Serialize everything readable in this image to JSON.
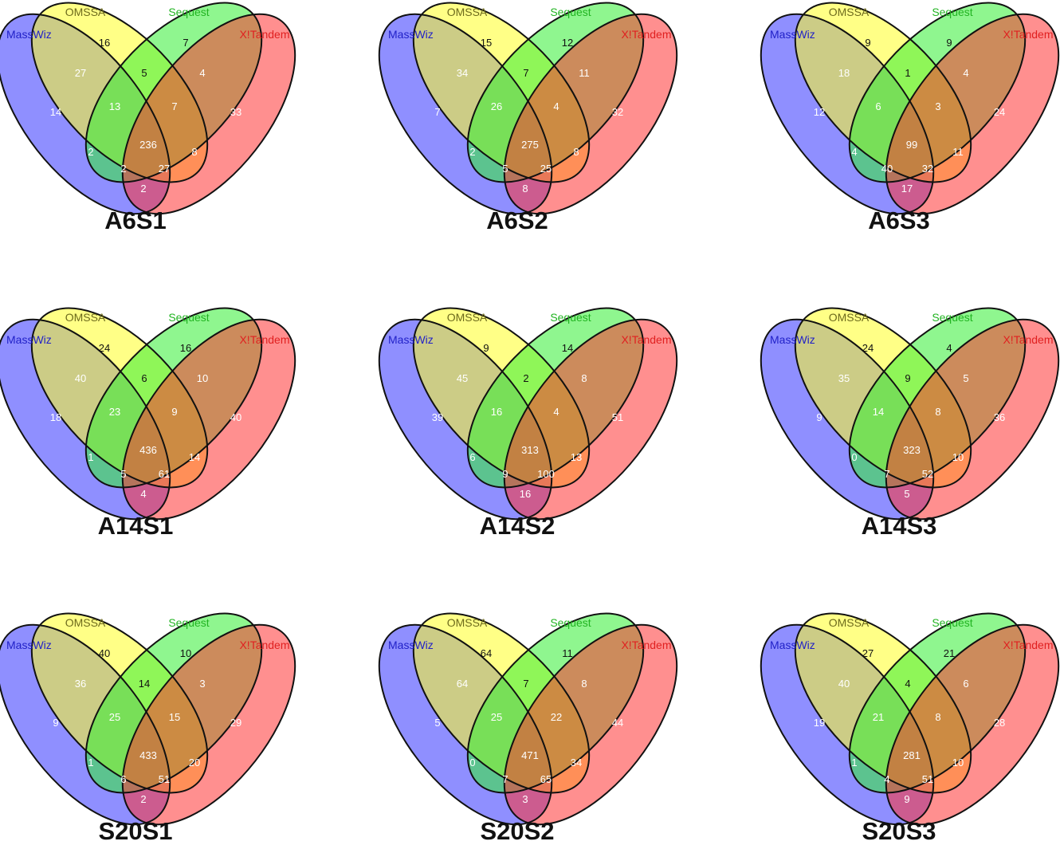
{
  "sets": {
    "masswiz": {
      "label": "MassWiz",
      "color": "#2121c8",
      "fill": "#3333ff"
    },
    "omssa": {
      "label": "OMSSA",
      "color": "#6d6a1c",
      "fill": "#ffff22"
    },
    "sequest": {
      "label": "Sequest",
      "color": "#22b422",
      "fill": "#33ee33"
    },
    "xtandem": {
      "label": "X!Tandem",
      "color": "#e02020",
      "fill": "#ff3333"
    }
  },
  "region_order": [
    "M",
    "O",
    "S",
    "X",
    "MO",
    "OS",
    "SX",
    "MS",
    "OX",
    "MOS",
    "OSX",
    "MOSX",
    "MX",
    "MOX",
    "MSX"
  ],
  "panels": [
    {
      "title": "A6S1",
      "counts": {
        "M": "14",
        "O": "16",
        "S": "7",
        "X": "33",
        "MO": "27",
        "OS": "5",
        "SX": "4",
        "MS": "2",
        "OX": "8",
        "MOS": "13",
        "OSX": "7",
        "MOSX": "236",
        "MX": "2",
        "MOX": "27",
        "MSX": "2"
      }
    },
    {
      "title": "A6S2",
      "counts": {
        "M": "7",
        "O": "15",
        "S": "12",
        "X": "32",
        "MO": "34",
        "OS": "7",
        "SX": "11",
        "MS": "2",
        "OX": "8",
        "MOS": "26",
        "OSX": "4",
        "MOSX": "275",
        "MX": "8",
        "MOX": "25",
        "MSX": "5"
      }
    },
    {
      "title": "A6S3",
      "counts": {
        "M": "12",
        "O": "9",
        "S": "9",
        "X": "24",
        "MO": "18",
        "OS": "1",
        "SX": "4",
        "MS": "4",
        "OX": "11",
        "MOS": "6",
        "OSX": "3",
        "MOSX": "99",
        "MX": "17",
        "MOX": "32",
        "MSX": "40"
      }
    },
    {
      "title": "A14S1",
      "counts": {
        "M": "18",
        "O": "24",
        "S": "16",
        "X": "40",
        "MO": "40",
        "OS": "6",
        "SX": "10",
        "MS": "1",
        "OX": "14",
        "MOS": "23",
        "OSX": "9",
        "MOSX": "436",
        "MX": "4",
        "MOX": "61",
        "MSX": "5"
      }
    },
    {
      "title": "A14S2",
      "counts": {
        "M": "39",
        "O": "9",
        "S": "14",
        "X": "51",
        "MO": "45",
        "OS": "2",
        "SX": "8",
        "MS": "6",
        "OX": "13",
        "MOS": "16",
        "OSX": "4",
        "MOSX": "313",
        "MX": "16",
        "MOX": "100",
        "MSX": "9"
      }
    },
    {
      "title": "A14S3",
      "counts": {
        "M": "9",
        "O": "24",
        "S": "4",
        "X": "36",
        "MO": "35",
        "OS": "9",
        "SX": "5",
        "MS": "0",
        "OX": "10",
        "MOS": "14",
        "OSX": "8",
        "MOSX": "323",
        "MX": "5",
        "MOX": "52",
        "MSX": "7"
      }
    },
    {
      "title": "S20S1",
      "counts": {
        "M": "9",
        "O": "40",
        "S": "10",
        "X": "29",
        "MO": "36",
        "OS": "14",
        "SX": "3",
        "MS": "1",
        "OX": "20",
        "MOS": "25",
        "OSX": "15",
        "MOSX": "433",
        "MX": "2",
        "MOX": "51",
        "MSX": "6"
      }
    },
    {
      "title": "S20S2",
      "counts": {
        "M": "5",
        "O": "64",
        "S": "11",
        "X": "44",
        "MO": "64",
        "OS": "7",
        "SX": "8",
        "MS": "0",
        "OX": "34",
        "MOS": "25",
        "OSX": "22",
        "MOSX": "471",
        "MX": "3",
        "MOX": "65",
        "MSX": "7"
      }
    },
    {
      "title": "S20S3",
      "counts": {
        "M": "19",
        "O": "27",
        "S": "21",
        "X": "28",
        "MO": "40",
        "OS": "4",
        "SX": "6",
        "MS": "1",
        "OX": "10",
        "MOS": "21",
        "OSX": "8",
        "MOSX": "281",
        "MX": "9",
        "MOX": "51",
        "MSX": "4"
      }
    }
  ]
}
